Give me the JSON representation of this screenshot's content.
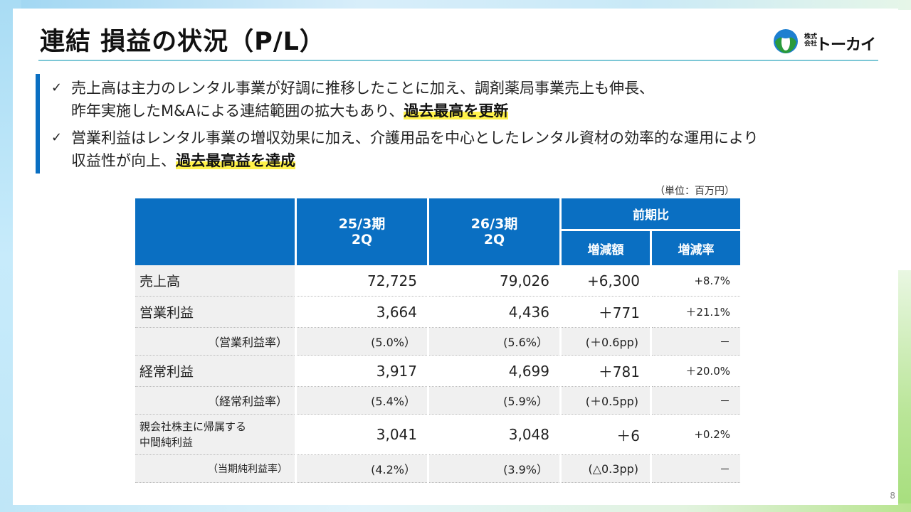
{
  "header": {
    "title": "連結 損益の状況（P/L）",
    "logo_prefix": "株式\n会社",
    "logo_name": "トーカイ"
  },
  "bullets": [
    {
      "mark": "✓",
      "line1": "売上高は主力のレンタル事業が好調に推移したことに加え、調剤薬局事業売上も伸長、",
      "line2_plain": "昨年実施したM&Aによる連結範囲の拡大もあり、",
      "line2_highlight": "過去最高を更新"
    },
    {
      "mark": "✓",
      "line1": "営業利益はレンタル事業の増収効果に加え、介護用品を中心としたレンタル資材の効率的な運用により",
      "line2_plain": "収益性が向上、",
      "line2_highlight": "過去最高益を達成"
    }
  ],
  "unit_label": "（単位：百万円）",
  "table": {
    "headers": {
      "col_prev": "25/3期\n2Q",
      "col_curr": "26/3期\n2Q",
      "compare": "前期比",
      "change_amount": "増減額",
      "change_rate": "増減率"
    },
    "rows": [
      {
        "label": "売上高",
        "prev": "72,725",
        "curr": "79,026",
        "diff": "+6,300",
        "rate": "+8.7%"
      },
      {
        "label": "営業利益",
        "prev": "3,664",
        "curr": "4,436",
        "diff": "＋771",
        "rate": "＋21.1%"
      },
      {
        "label": "（営業利益率）",
        "prev": "(5.0%）",
        "curr": "(5.6%）",
        "diff": "(＋0.6pp)",
        "rate": "－"
      },
      {
        "label": "経常利益",
        "prev": "3,917",
        "curr": "4,699",
        "diff": "＋781",
        "rate": "＋20.0%"
      },
      {
        "label": "（経常利益率）",
        "prev": "(5.4%）",
        "curr": "(5.9%）",
        "diff": "(＋0.5pp)",
        "rate": "－"
      },
      {
        "label": "親会社株主に帰属する\n中間純利益",
        "prev": "3,041",
        "curr": "3,048",
        "diff": "＋6",
        "rate": "+0.2%"
      },
      {
        "label": "（当期純利益率）",
        "prev": "(4.2%）",
        "curr": "(3.9%）",
        "diff": "(△0.3pp)",
        "rate": "－"
      }
    ]
  },
  "page_number": "8",
  "colors": {
    "accent": "#0a6fc2",
    "highlight": "#fff24a"
  }
}
